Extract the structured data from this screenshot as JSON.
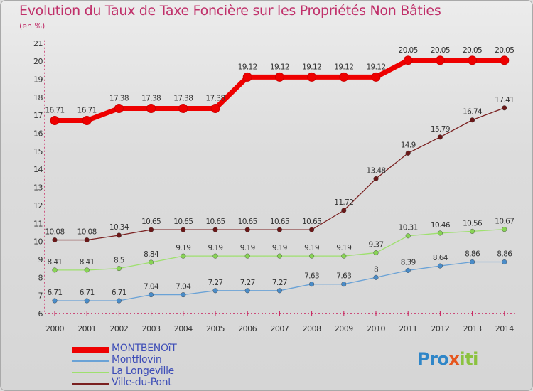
{
  "title": "Evolution du Taux de Taxe Foncière sur les Propriétés Non Bâties",
  "unit_label": "(en %)",
  "logo": {
    "part1": "Pro",
    "part2": "x",
    "part3": "iti"
  },
  "chart_data": {
    "type": "line",
    "title": "Evolution du Taux de Taxe Foncière sur les Propriétés Non Bâties",
    "ylabel": "(en %)",
    "xlabel": "",
    "ylim": [
      6,
      21
    ],
    "y_ticks": [
      6,
      7,
      8,
      9,
      10,
      11,
      12,
      13,
      14,
      15,
      16,
      17,
      18,
      19,
      20,
      21
    ],
    "grid": false,
    "legend_position": "bottom-left",
    "x": [
      "2000",
      "2001",
      "2002",
      "2003",
      "2004",
      "2005",
      "2006",
      "2007",
      "2008",
      "2009",
      "2010",
      "2011",
      "2012",
      "2013",
      "2014"
    ],
    "series": [
      {
        "name": "MONTBENOîT",
        "color": "#ee0000",
        "marker": "#ee0000",
        "bold": true,
        "values": [
          16.71,
          16.71,
          17.38,
          17.38,
          17.38,
          17.38,
          19.12,
          19.12,
          19.12,
          19.12,
          19.12,
          20.05,
          20.05,
          20.05,
          20.05
        ],
        "labels": [
          "16.71",
          "16.71",
          "17.38",
          "17.38",
          "17.38",
          "17.38",
          "19.12",
          "19.12",
          "19.12",
          "19.12",
          "19.12",
          "20.05",
          "20.05",
          "20.05",
          "20.05"
        ]
      },
      {
        "name": "Montflovin",
        "color": "#6aa2d6",
        "marker": "#4a8cc8",
        "bold": false,
        "values": [
          6.71,
          6.71,
          6.71,
          7.04,
          7.04,
          7.27,
          7.27,
          7.27,
          7.63,
          7.63,
          8,
          8.39,
          8.64,
          8.86,
          8.86
        ],
        "labels": [
          "6.71",
          "6.71",
          "6.71",
          "7.04",
          "7.04",
          "7.27",
          "7.27",
          "7.27",
          "7.63",
          "7.63",
          "8",
          "8.39",
          "8.64",
          "8.86",
          "8.86"
        ]
      },
      {
        "name": "La Longeville",
        "color": "#9ee06e",
        "marker": "#88d455",
        "bold": false,
        "values": [
          8.41,
          8.41,
          8.5,
          8.84,
          9.19,
          9.19,
          9.19,
          9.19,
          9.19,
          9.19,
          9.37,
          10.31,
          10.46,
          10.56,
          10.67
        ],
        "labels": [
          "8.41",
          "8.41",
          "8.5",
          "8.84",
          "9.19",
          "9.19",
          "9.19",
          "9.19",
          "9.19",
          "9.19",
          "9.37",
          "10.31",
          "10.46",
          "10.56",
          "10.67"
        ]
      },
      {
        "name": "Ville-du-Pont",
        "color": "#7a2020",
        "marker": "#6b1818",
        "bold": false,
        "values": [
          10.08,
          10.08,
          10.34,
          10.65,
          10.65,
          10.65,
          10.65,
          10.65,
          10.65,
          11.72,
          13.48,
          14.9,
          15.79,
          16.74,
          17.41
        ],
        "labels": [
          "10.08",
          "10.08",
          "10.34",
          "10.65",
          "10.65",
          "10.65",
          "10.65",
          "10.65",
          "10.65",
          "11.72",
          "13.48",
          "14.9",
          "15.79",
          "16.74",
          "17.41"
        ]
      }
    ]
  }
}
